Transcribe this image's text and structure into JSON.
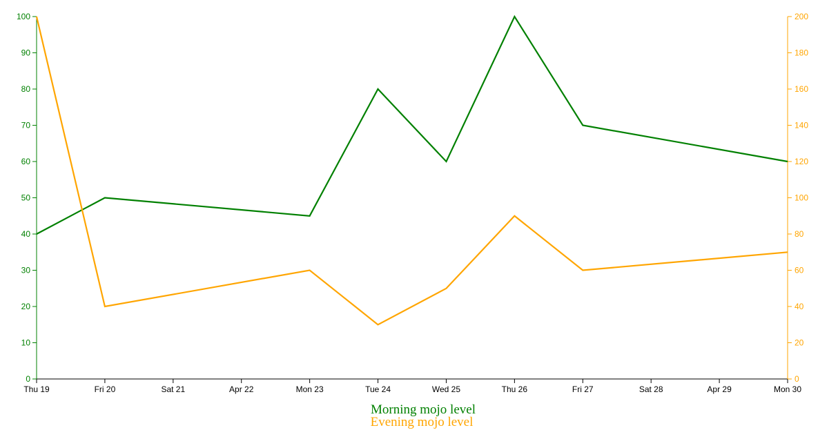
{
  "colors": {
    "morning": "#008000",
    "evening": "#ffa500",
    "axis": "#000000"
  },
  "chart_data": {
    "type": "line",
    "title": "",
    "x_tick_labels": [
      "Thu 19",
      "Fri 20",
      "Sat 21",
      "Apr 22",
      "Mon 23",
      "Tue 24",
      "Wed 25",
      "Thu 26",
      "Fri 27",
      "Sat 28",
      "Apr 29",
      "Mon 30"
    ],
    "y_left": {
      "ticks": [
        0,
        10,
        20,
        30,
        40,
        50,
        60,
        70,
        80,
        90,
        100
      ],
      "lim": [
        0,
        100
      ]
    },
    "y_right": {
      "ticks": [
        0,
        20,
        40,
        60,
        80,
        100,
        120,
        140,
        160,
        180,
        200
      ],
      "lim": [
        0,
        200
      ]
    },
    "grid": false,
    "legend_position": "bottom-center",
    "series": [
      {
        "name": "Morning mojo level",
        "axis": "left",
        "points": [
          {
            "x": "Thu 19",
            "y": 40
          },
          {
            "x": "Fri 20",
            "y": 50
          },
          {
            "x": "Mon 23",
            "y": 45
          },
          {
            "x": "Tue 24",
            "y": 80
          },
          {
            "x": "Wed 25",
            "y": 60
          },
          {
            "x": "Thu 26",
            "y": 100
          },
          {
            "x": "Fri 27",
            "y": 70
          },
          {
            "x": "Mon 30",
            "y": 60
          }
        ]
      },
      {
        "name": "Evening mojo level",
        "axis": "right",
        "points": [
          {
            "x": "Thu 19",
            "y": 200
          },
          {
            "x": "Fri 20",
            "y": 40
          },
          {
            "x": "Mon 23",
            "y": 60
          },
          {
            "x": "Tue 24",
            "y": 30
          },
          {
            "x": "Wed 25",
            "y": 50
          },
          {
            "x": "Thu 26",
            "y": 90
          },
          {
            "x": "Fri 27",
            "y": 60
          },
          {
            "x": "Mon 30",
            "y": 70
          }
        ]
      }
    ]
  }
}
